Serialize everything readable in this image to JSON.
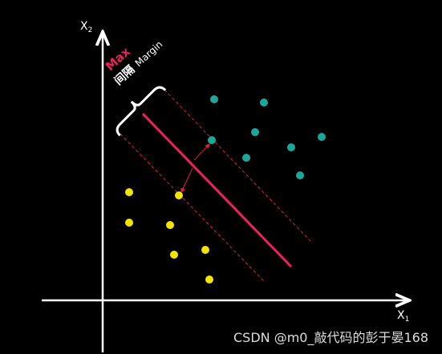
{
  "diagram": {
    "y_axis": {
      "label": "X",
      "subscript": "2"
    },
    "x_axis": {
      "label": "X",
      "subscript": "1"
    },
    "annotation": {
      "emphasis": "Max",
      "chinese": "间隔",
      "english": "Margin"
    },
    "watermark": "CSDN @m0_敲代码的彭于晏168"
  }
}
